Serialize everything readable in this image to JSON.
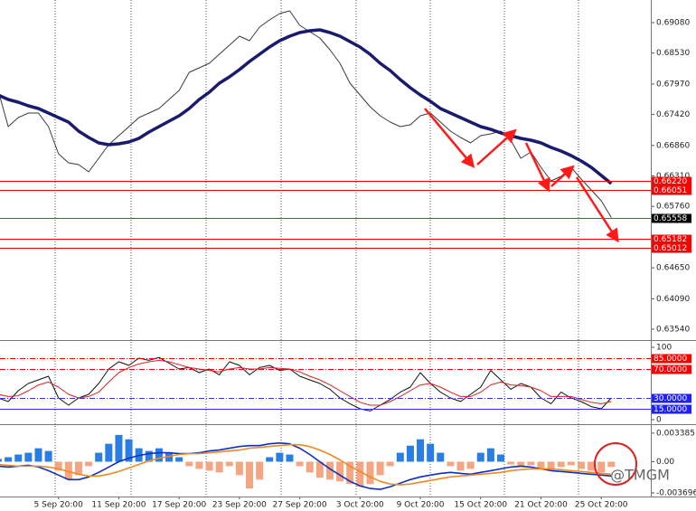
{
  "chart_data": [
    {
      "type": "line",
      "ylim": [
        0.6336,
        0.69489
      ],
      "yticks": [
        {
          "value": 0.6908,
          "label": "0.69080"
        },
        {
          "value": 0.6853,
          "label": "0.68530"
        },
        {
          "value": 0.6797,
          "label": "0.67970"
        },
        {
          "value": 0.6742,
          "label": "0.67420"
        },
        {
          "value": 0.6686,
          "label": "0.66860"
        },
        {
          "value": 0.6631,
          "label": "0.66310"
        },
        {
          "value": 0.6576,
          "label": "0.65760"
        },
        {
          "value": 0.6465,
          "label": "0.64650"
        },
        {
          "value": 0.6409,
          "label": "0.64090"
        },
        {
          "value": 0.6354,
          "label": "0.63540"
        }
      ],
      "levels": [
        {
          "value": 0.6622,
          "label": "0.66220",
          "color": "#ff0000",
          "label_background": "#ff0000"
        },
        {
          "value": 0.66051,
          "label": "0.66051",
          "color": "#ff0000",
          "label_background": "#ff0000"
        },
        {
          "value": 0.65558,
          "label": "0.65558",
          "color": "#3a5fb0",
          "label_background": "#000000"
        },
        {
          "value": 0.65182,
          "label": "0.65182",
          "color": "#ff0000",
          "label_background": "#ff0000"
        },
        {
          "value": 0.65012,
          "label": "0.65012",
          "color": "#ff0000",
          "label_background": "#ff0000"
        }
      ],
      "series": [
        {
          "color": "#3a3a3a",
          "values": [
            0.67855,
            0.67201,
            0.67364,
            0.67446,
            0.67446,
            0.67201,
            0.66711,
            0.66547,
            0.66515,
            0.66384,
            0.66629,
            0.66874,
            0.67038,
            0.67201,
            0.67364,
            0.67446,
            0.67528,
            0.67691,
            0.67855,
            0.68182,
            0.68263,
            0.68345,
            0.68508,
            0.68672,
            0.68835,
            0.68754,
            0.68999,
            0.69129,
            0.69244,
            0.69293,
            0.69031,
            0.68917,
            0.68803,
            0.6859,
            0.68345,
            0.67985,
            0.67773,
            0.67561,
            0.67397,
            0.67283,
            0.67201,
            0.67234,
            0.67397,
            0.67446,
            0.67283,
            0.67119,
            0.67005,
            0.66907,
            0.67038,
            0.6707,
            0.67119,
            0.66956,
            0.66629,
            0.66743,
            0.66466,
            0.6622,
            0.66302,
            0.66466,
            0.66253,
            0.66057,
            0.65861,
            0.65558
          ]
        },
        {
          "color": "#1a1a6e",
          "values": [
            0.67773,
            0.67691,
            0.67642,
            0.67577,
            0.67528,
            0.67446,
            0.67364,
            0.67283,
            0.67119,
            0.67005,
            0.66907,
            0.66874,
            0.6689,
            0.66923,
            0.66989,
            0.67103,
            0.67201,
            0.67299,
            0.67397,
            0.67528,
            0.67691,
            0.67822,
            0.67985,
            0.681,
            0.68231,
            0.68378,
            0.68508,
            0.68639,
            0.68754,
            0.68835,
            0.68901,
            0.68933,
            0.6895,
            0.68901,
            0.68835,
            0.68737,
            0.68639,
            0.68508,
            0.68345,
            0.68214,
            0.68051,
            0.67904,
            0.67773,
            0.67659,
            0.67528,
            0.67446,
            0.67364,
            0.67283,
            0.67201,
            0.67152,
            0.67087,
            0.67038,
            0.66989,
            0.66956,
            0.66907,
            0.66825,
            0.6676,
            0.66678,
            0.6658,
            0.66466,
            0.66318,
            0.66171
          ]
        }
      ]
    },
    {
      "type": "line",
      "ylim": [
        -5,
        107.5
      ],
      "yticks": [
        100,
        0
      ],
      "levels": [
        {
          "value": 85,
          "label": "85.0000",
          "color": "#ff0000",
          "label_background": "#ff0000"
        },
        {
          "value": 70,
          "label": "70.0000",
          "color": "#ff0000",
          "label_background": "#ff0000"
        },
        {
          "value": 30,
          "label": "30.0000",
          "color": "#3030ff",
          "label_background": "#2020ff"
        },
        {
          "value": 15,
          "label": "15.0000",
          "color": "#3030ff",
          "label_background": "#2020ff"
        }
      ],
      "series": [
        {
          "color": "#111111",
          "values": [
            30,
            25,
            40,
            50,
            55,
            60,
            30,
            20,
            30,
            35,
            50,
            70,
            80,
            75,
            85,
            82,
            86,
            78,
            70,
            72,
            65,
            70,
            62,
            80,
            75,
            62,
            72,
            75,
            68,
            70,
            60,
            55,
            50,
            42,
            30,
            22,
            15,
            12,
            20,
            28,
            38,
            45,
            65,
            50,
            38,
            30,
            25,
            35,
            45,
            68,
            55,
            42,
            50,
            45,
            30,
            22,
            38,
            30,
            25,
            18,
            15,
            30
          ]
        },
        {
          "color": "#e02020",
          "values": [
            35,
            32,
            33,
            40,
            48,
            52,
            45,
            35,
            30,
            32,
            38,
            52,
            65,
            72,
            77,
            80,
            82,
            80,
            76,
            72,
            70,
            68,
            66,
            70,
            72,
            70,
            70,
            72,
            71,
            70,
            66,
            60,
            55,
            48,
            40,
            32,
            24,
            20,
            20,
            25,
            32,
            40,
            48,
            50,
            45,
            38,
            32,
            32,
            38,
            48,
            52,
            48,
            47,
            45,
            40,
            32,
            32,
            32,
            28,
            24,
            22,
            25
          ]
        }
      ]
    },
    {
      "type": "bar",
      "ylim": [
        -0.00402,
        0.00423
      ],
      "yticks": [
        0.0033851,
        {
          "value": 0,
          "label": "0.00"
        },
        -0.0036962
      ],
      "categories": [
        null,
        null,
        null,
        null,
        null,
        null,
        "5 Sep 20:00",
        null,
        null,
        null,
        null,
        null,
        "11 Sep 20:00",
        null,
        null,
        null,
        null,
        null,
        "17 Sep 20:00",
        null,
        null,
        null,
        null,
        null,
        "23 Sep 20:00",
        null,
        null,
        null,
        null,
        null,
        "27 Sep 20:00",
        null,
        null,
        null,
        null,
        null,
        "3 Oct 20:00",
        null,
        null,
        null,
        null,
        null,
        "9 Oct 20:00",
        null,
        null,
        null,
        null,
        null,
        "15 Oct 20:00",
        null,
        null,
        null,
        null,
        null,
        "21 Oct 20:00",
        null,
        null,
        null,
        null,
        null,
        "25 Oct 20:00",
        null
      ],
      "watermark": "@TMGM",
      "series": [
        {
          "color": "#2a7de1",
          "negative_color": "#f4a582",
          "values": [
            0.00032,
            0.00053,
            0.00085,
            0.00106,
            0.00159,
            0.00127,
            -0.00106,
            -0.00212,
            -0.00159,
            -0.00053,
            0.00106,
            0.00212,
            0.00317,
            0.00265,
            0.00159,
            0.00127,
            0.00159,
            0.00106,
            0.00053,
            -0.00053,
            -0.00085,
            -0.00106,
            -0.00127,
            -0.00053,
            -0.00159,
            -0.00317,
            -0.00212,
            0.00053,
            0.00106,
            0.00085,
            -0.00053,
            -0.00127,
            -0.0019,
            -0.00212,
            -0.00233,
            -0.00265,
            -0.00296,
            -0.00265,
            -0.00159,
            -0.00053,
            0.00106,
            0.0019,
            0.00265,
            0.00212,
            0.00106,
            -0.00053,
            -0.00106,
            -0.00085,
            0.00106,
            0.00159,
            0.00085,
            -0.00032,
            -0.00063,
            -0.00042,
            -0.00085,
            -0.00106,
            -0.00063,
            -0.00042,
            -0.00085,
            -0.00106,
            -0.00127,
            -0.00063
          ]
        },
        {
          "type": "line",
          "color": "#1030c0",
          "values": [
            -0.00053,
            -0.00063,
            -0.00053,
            -0.00042,
            -0.00063,
            -0.00106,
            -0.00159,
            -0.00212,
            -0.00212,
            -0.0018,
            -0.00127,
            -0.00063,
            0,
            0.00042,
            0.00074,
            0.00095,
            0.00106,
            0.00106,
            0.00095,
            0.00095,
            0.00106,
            0.00127,
            0.00138,
            0.00159,
            0.0018,
            0.0019,
            0.0019,
            0.00212,
            0.00222,
            0.00212,
            0.00159,
            0.00085,
            0,
            -0.00085,
            -0.00159,
            -0.00233,
            -0.00286,
            -0.00317,
            -0.00328,
            -0.00296,
            -0.00254,
            -0.00212,
            -0.0018,
            -0.00159,
            -0.00138,
            -0.00127,
            -0.00138,
            -0.00148,
            -0.00127,
            -0.00106,
            -0.00085,
            -0.00063,
            -0.00053,
            -0.00063,
            -0.00085,
            -0.00106,
            -0.00116,
            -0.00127,
            -0.00138,
            -0.00148,
            -0.00159,
            -0.00169
          ]
        },
        {
          "type": "line",
          "color": "#f08a24",
          "values": [
            -0.00032,
            -0.00042,
            -0.00053,
            -0.00053,
            -0.00053,
            -0.00063,
            -0.00085,
            -0.00116,
            -0.00148,
            -0.00169,
            -0.00169,
            -0.00148,
            -0.00116,
            -0.00074,
            -0.00032,
            0.00011,
            0.00042,
            0.00063,
            0.00085,
            0.00095,
            0.00095,
            0.00106,
            0.00116,
            0.00127,
            0.00138,
            0.00159,
            0.00169,
            0.0018,
            0.0019,
            0.00201,
            0.00201,
            0.0018,
            0.00138,
            0.00085,
            0.00021,
            -0.00053,
            -0.00116,
            -0.0018,
            -0.00233,
            -0.00265,
            -0.00275,
            -0.00265,
            -0.00243,
            -0.00222,
            -0.00201,
            -0.0018,
            -0.00169,
            -0.00159,
            -0.00148,
            -0.00138,
            -0.00127,
            -0.00106,
            -0.00095,
            -0.00085,
            -0.00085,
            -0.00085,
            -0.00095,
            -0.00106,
            -0.00116,
            -0.00127,
            -0.00138,
            -0.00148
          ]
        }
      ]
    }
  ]
}
